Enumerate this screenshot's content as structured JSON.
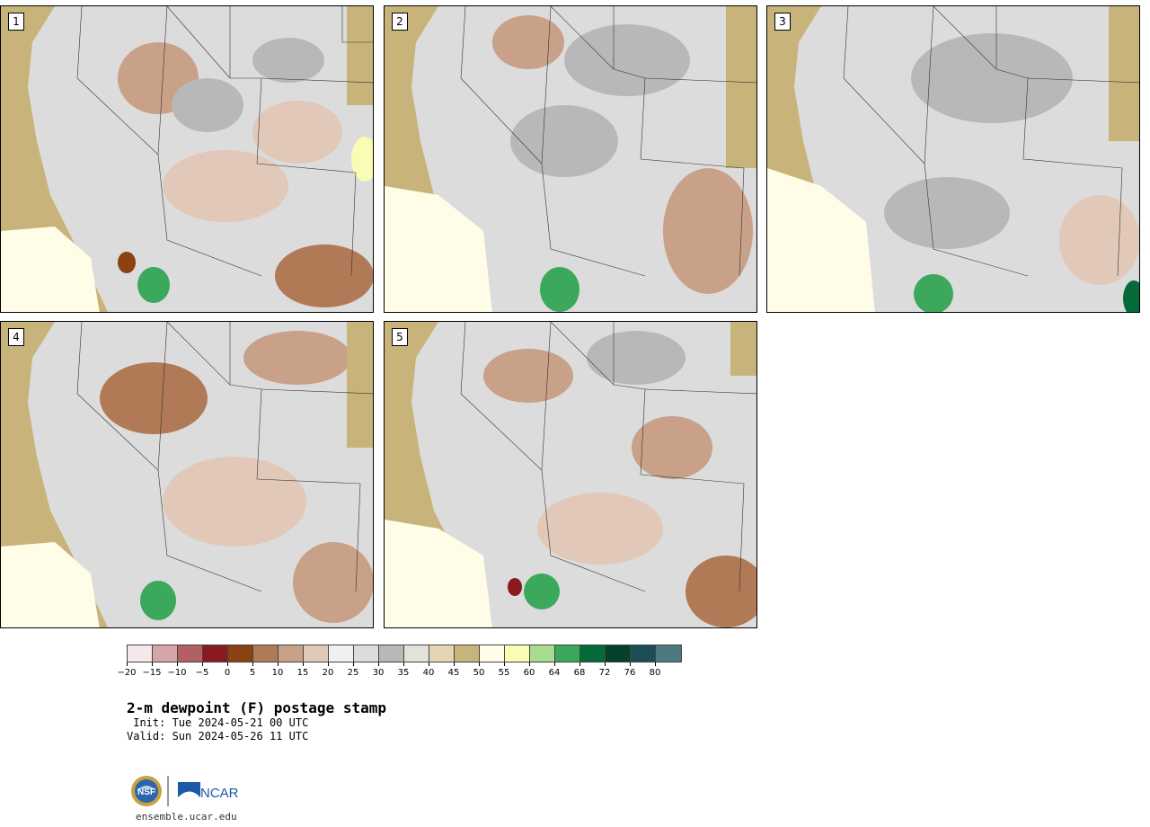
{
  "panels": [
    {
      "label": "1"
    },
    {
      "label": "2"
    },
    {
      "label": "3"
    },
    {
      "label": "4"
    },
    {
      "label": "5"
    }
  ],
  "colorbar": {
    "colors": [
      "#f4e8ea",
      "#d7a4a8",
      "#b26064",
      "#8a1a22",
      "#8a4210",
      "#b07a56",
      "#c9a088",
      "#e2c8b8",
      "#f0f0f0",
      "#dcdcdc",
      "#b8b8b8",
      "#e2e2d8",
      "#e4d6b2",
      "#c8b47a",
      "#fffde8",
      "#f8fcb4",
      "#a8dc90",
      "#3ca85c",
      "#046a3a",
      "#04402a",
      "#1c4e58",
      "#4c7a80"
    ],
    "ticks": [
      "−20",
      "−15",
      "−10",
      "−5",
      "0",
      "5",
      "10",
      "15",
      "20",
      "25",
      "30",
      "35",
      "40",
      "45",
      "50",
      "55",
      "60",
      "64",
      "68",
      "72",
      "76",
      "80"
    ]
  },
  "title": "2-m dewpoint (F) postage stamp",
  "init": " Init: Tue 2024-05-21 00 UTC",
  "valid": "Valid: Sun 2024-05-26 11 UTC",
  "logos": {
    "left_logo": "NSF",
    "right_logo": "NCAR"
  },
  "url": "ensemble.ucar.edu"
}
